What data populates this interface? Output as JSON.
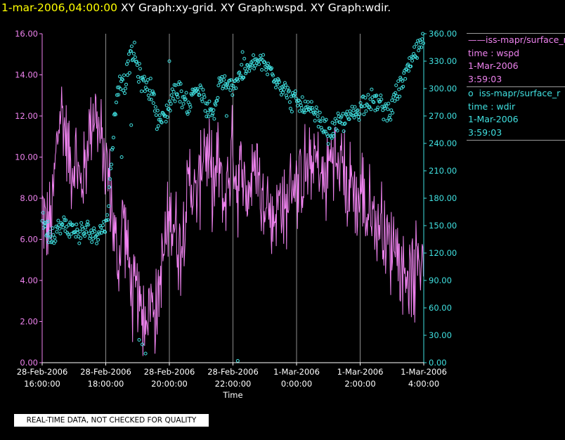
{
  "header": {
    "timestamp": "1-mar-2006,04:00:00",
    "title": "XY Graph:xy-grid.  XY Graph:wspd.  XY Graph:wdir."
  },
  "legend": {
    "entries": [
      {
        "marker": "——",
        "name": "iss-mapr/surface_r",
        "line2": "time : wspd",
        "line3": "1-Mar-2006",
        "line4": "3:59:03",
        "color": "#ee82ee"
      },
      {
        "marker": "o",
        "name": "iss-mapr/surface_r",
        "line2": "time : wdir",
        "line3": "1-Mar-2006",
        "line4": "3:59:03",
        "color": "#40e0e0"
      }
    ]
  },
  "quality_note": "REAL-TIME DATA, NOT CHECKED FOR QUALITY",
  "chart_data": {
    "type": "line",
    "xlabel": "Time",
    "x_ticks": [
      {
        "hours": 0,
        "line1": "28-Feb-2006",
        "line2": "16:00:00"
      },
      {
        "hours": 2,
        "line1": "28-Feb-2006",
        "line2": "18:00:00"
      },
      {
        "hours": 4,
        "line1": "28-Feb-2006",
        "line2": "20:00:00"
      },
      {
        "hours": 6,
        "line1": "28-Feb-2006",
        "line2": "22:00:00"
      },
      {
        "hours": 8,
        "line1": "1-Mar-2006",
        "line2": "0:00:00"
      },
      {
        "hours": 10,
        "line1": "1-Mar-2006",
        "line2": "2:00:00"
      },
      {
        "hours": 12,
        "line1": "1-Mar-2006",
        "line2": "4:00:00"
      }
    ],
    "xlim": [
      "28-Feb-2006 16:00:00",
      "1-Mar-2006 4:00:00"
    ],
    "grid": "vertical",
    "left_axis": {
      "color": "#ee82ee",
      "ylim": [
        0,
        16
      ],
      "ticks": [
        "0.00",
        "2.00",
        "4.00",
        "6.00",
        "8.00",
        "10.00",
        "12.00",
        "14.00",
        "16.00"
      ]
    },
    "right_axis": {
      "color": "#40e0e0",
      "ylim": [
        0,
        360
      ],
      "ticks": [
        "0.00",
        "30.00",
        "60.00",
        "90.00",
        "120.00",
        "150.00",
        "180.00",
        "210.00",
        "240.00",
        "270.00",
        "300.00",
        "330.00",
        "360.00"
      ]
    },
    "series": [
      {
        "name": "wspd",
        "style": "line",
        "axis": "left",
        "color": "#ee82ee",
        "anchors": [
          [
            0.0,
            7.5
          ],
          [
            0.15,
            6.5
          ],
          [
            0.3,
            7.0
          ],
          [
            0.45,
            10.5
          ],
          [
            0.6,
            12.5
          ],
          [
            0.75,
            11.0
          ],
          [
            0.9,
            9.5
          ],
          [
            1.05,
            10.0
          ],
          [
            1.2,
            8.5
          ],
          [
            1.35,
            9.5
          ],
          [
            1.5,
            11.5
          ],
          [
            1.65,
            12.5
          ],
          [
            1.8,
            11.0
          ],
          [
            1.95,
            10.0
          ],
          [
            2.1,
            9.0
          ],
          [
            2.25,
            6.5
          ],
          [
            2.4,
            4.5
          ],
          [
            2.55,
            7.5
          ],
          [
            2.7,
            5.0
          ],
          [
            2.85,
            3.0
          ],
          [
            3.0,
            3.5
          ],
          [
            3.1,
            2.0
          ],
          [
            3.25,
            2.5
          ],
          [
            3.45,
            3.0
          ],
          [
            3.6,
            2.5
          ],
          [
            3.75,
            4.5
          ],
          [
            3.9,
            6.0
          ],
          [
            4.05,
            7.5
          ],
          [
            4.2,
            6.5
          ],
          [
            4.35,
            5.5
          ],
          [
            4.5,
            7.5
          ],
          [
            4.65,
            9.0
          ],
          [
            4.8,
            8.0
          ],
          [
            4.95,
            8.5
          ],
          [
            5.1,
            11.0
          ],
          [
            5.25,
            9.5
          ],
          [
            5.4,
            8.5
          ],
          [
            5.55,
            10.0
          ],
          [
            5.7,
            7.5
          ],
          [
            5.85,
            9.0
          ],
          [
            6.0,
            10.5
          ],
          [
            6.15,
            8.5
          ],
          [
            6.3,
            9.5
          ],
          [
            6.45,
            8.0
          ],
          [
            6.6,
            9.0
          ],
          [
            6.75,
            10.0
          ],
          [
            6.9,
            7.5
          ],
          [
            7.05,
            8.5
          ],
          [
            7.2,
            6.5
          ],
          [
            7.35,
            7.5
          ],
          [
            7.5,
            8.0
          ],
          [
            7.65,
            7.0
          ],
          [
            7.8,
            8.5
          ],
          [
            7.95,
            9.0
          ],
          [
            8.1,
            8.5
          ],
          [
            8.25,
            9.5
          ],
          [
            8.4,
            9.0
          ],
          [
            8.55,
            10.0
          ],
          [
            8.7,
            9.5
          ],
          [
            8.85,
            8.5
          ],
          [
            9.0,
            9.5
          ],
          [
            9.15,
            10.5
          ],
          [
            9.3,
            9.0
          ],
          [
            9.45,
            10.0
          ],
          [
            9.6,
            8.0
          ],
          [
            9.75,
            9.0
          ],
          [
            9.9,
            7.5
          ],
          [
            10.05,
            8.5
          ],
          [
            10.2,
            7.0
          ],
          [
            10.35,
            7.5
          ],
          [
            10.5,
            6.5
          ],
          [
            10.65,
            7.0
          ],
          [
            10.8,
            6.5
          ],
          [
            10.95,
            5.5
          ],
          [
            11.1,
            6.0
          ],
          [
            11.25,
            5.0
          ],
          [
            11.4,
            4.5
          ],
          [
            11.55,
            4.5
          ],
          [
            11.7,
            4.0
          ],
          [
            11.85,
            5.0
          ],
          [
            12.0,
            5.5
          ]
        ],
        "noise": 2.2
      },
      {
        "name": "wdir",
        "style": "scatter",
        "axis": "right",
        "color": "#40e0e0",
        "anchors": [
          [
            0.0,
            160
          ],
          [
            0.1,
            150
          ],
          [
            0.25,
            140
          ],
          [
            0.45,
            145
          ],
          [
            0.6,
            148
          ],
          [
            0.8,
            150
          ],
          [
            1.0,
            145
          ],
          [
            1.2,
            140
          ],
          [
            1.4,
            145
          ],
          [
            1.6,
            140
          ],
          [
            1.8,
            145
          ],
          [
            2.0,
            150
          ],
          [
            2.1,
            180
          ],
          [
            2.2,
            230
          ],
          [
            2.3,
            280
          ],
          [
            2.4,
            300
          ],
          [
            2.5,
            315
          ],
          [
            2.6,
            300
          ],
          [
            2.7,
            325
          ],
          [
            2.8,
            335
          ],
          [
            2.9,
            340
          ],
          [
            3.0,
            320
          ],
          [
            3.2,
            305
          ],
          [
            3.4,
            300
          ],
          [
            3.5,
            290
          ],
          [
            3.6,
            270
          ],
          [
            3.75,
            265
          ],
          [
            3.9,
            270
          ],
          [
            4.1,
            295
          ],
          [
            4.3,
            300
          ],
          [
            4.5,
            285
          ],
          [
            4.6,
            280
          ],
          [
            4.8,
            300
          ],
          [
            5.0,
            295
          ],
          [
            5.2,
            275
          ],
          [
            5.4,
            270
          ],
          [
            5.6,
            310
          ],
          [
            5.8,
            300
          ],
          [
            6.0,
            305
          ],
          [
            6.2,
            315
          ],
          [
            6.4,
            320
          ],
          [
            6.6,
            325
          ],
          [
            6.8,
            330
          ],
          [
            7.0,
            325
          ],
          [
            7.2,
            320
          ],
          [
            7.4,
            310
          ],
          [
            7.6,
            300
          ],
          [
            7.8,
            290
          ],
          [
            8.0,
            285
          ],
          [
            8.2,
            280
          ],
          [
            8.4,
            275
          ],
          [
            8.6,
            270
          ],
          [
            8.8,
            260
          ],
          [
            9.0,
            250
          ],
          [
            9.1,
            255
          ],
          [
            9.3,
            260
          ],
          [
            9.5,
            265
          ],
          [
            9.7,
            270
          ],
          [
            9.9,
            275
          ],
          [
            10.1,
            285
          ],
          [
            10.3,
            290
          ],
          [
            10.5,
            285
          ],
          [
            10.7,
            280
          ],
          [
            10.9,
            275
          ],
          [
            11.1,
            290
          ],
          [
            11.3,
            305
          ],
          [
            11.5,
            320
          ],
          [
            11.7,
            335
          ],
          [
            11.85,
            345
          ],
          [
            12.0,
            350
          ]
        ],
        "noise": 10,
        "outliers": [
          [
            3.15,
            20
          ],
          [
            3.25,
            10
          ],
          [
            3.05,
            25
          ],
          [
            3.5,
            295
          ],
          [
            5.8,
            270
          ],
          [
            6.15,
            2
          ],
          [
            4.0,
            330
          ],
          [
            2.5,
            225
          ],
          [
            2.8,
            260
          ],
          [
            6.3,
            340
          ]
        ]
      }
    ]
  }
}
